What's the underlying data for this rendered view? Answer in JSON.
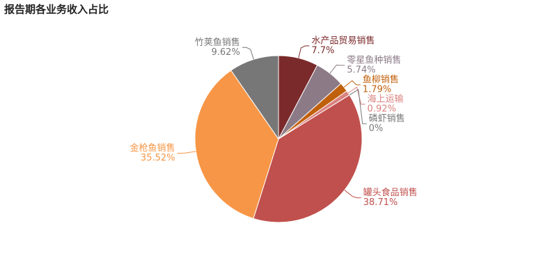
{
  "chart_data": {
    "type": "pie",
    "title": "报告期各业务收入占比",
    "categories": [
      "水产品贸易销售",
      "零星鱼种销售",
      "鱼柳销售",
      "海上运输",
      "磷虾销售",
      "罐头食品销售",
      "金枪鱼销售",
      "竹荚鱼销售"
    ],
    "values": [
      7.7,
      5.74,
      1.79,
      0.92,
      0,
      38.71,
      35.52,
      9.62
    ],
    "value_labels": [
      "7.7%",
      "5.74%",
      "1.79%",
      "0.92%",
      "0%",
      "38.71%",
      "35.52%",
      "9.62%"
    ],
    "colors": [
      "#7b2a2b",
      "#8c7b87",
      "#c0600c",
      "#d9827f",
      "#777777",
      "#c0504d",
      "#f79646",
      "#777777"
    ]
  }
}
